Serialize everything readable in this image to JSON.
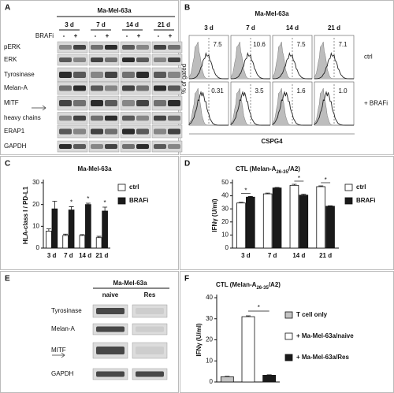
{
  "panels": [
    "A",
    "B",
    "C",
    "D",
    "E",
    "F"
  ],
  "blot_a": {
    "title": "Ma-Mel-63a",
    "treatment": "BRAFi",
    "times": [
      "3 d",
      "7 d",
      "14 d",
      "21 d"
    ],
    "conditions": [
      "-",
      "+"
    ],
    "rows": [
      "pERK",
      "ERK",
      "Tyrosinase",
      "Melan-A",
      "MITF",
      "heavy chains",
      "ERAP1",
      "GAPDH"
    ]
  },
  "flow_b": {
    "title": "Ma-Mel-63a",
    "times": [
      "3 d",
      "7 d",
      "14 d",
      "21 d"
    ],
    "ylabel": "% of gated",
    "xlabel": "CSPG4",
    "rows": [
      {
        "name": "ctrl",
        "values": [
          "7.5",
          "10.6",
          "7.5",
          "7.1"
        ]
      },
      {
        "name": "+ BRAFi",
        "values": [
          "0.31",
          "3.5",
          "1.6",
          "1.0"
        ]
      }
    ]
  },
  "blot_e": {
    "title": "Ma-Mel-63a",
    "columns": [
      "naive",
      "Res"
    ],
    "rows": [
      "Tyrosinase",
      "Melan-A",
      "MITF",
      "GAPDH"
    ]
  },
  "chart_data": [
    {
      "type": "bar",
      "title": [
        "Ma-Mel-63a"
      ],
      "ylabel": "HLA-class I / PD-L1",
      "categories": [
        "3 d",
        "7 d",
        "14 d",
        "21 d"
      ],
      "series": [
        {
          "name": "ctrl",
          "color": "#ffffff",
          "values": [
            7.8,
            5.8,
            5.8,
            4.8
          ],
          "errors": [
            1.0,
            0.6,
            0.4,
            0.6
          ]
        },
        {
          "name": "BRAFi",
          "color": "#1a1a1a",
          "values": [
            18,
            17.5,
            20,
            17
          ],
          "errors": [
            3.5,
            1.5,
            0.6,
            1.8
          ]
        }
      ],
      "significance": [
        null,
        "*",
        "*",
        "*"
      ],
      "significance_style": "star",
      "ylim": [
        0,
        30
      ],
      "yticks": [
        0,
        10,
        20,
        30
      ]
    },
    {
      "type": "bar",
      "title": [
        "CTL (Melan-A",
        "26-35",
        "/A2)"
      ],
      "ylabel": "IFNγ (U/ml)",
      "categories": [
        "3 d",
        "7 d",
        "14 d",
        "21 d"
      ],
      "series": [
        {
          "name": "ctrl",
          "color": "#ffffff",
          "values": [
            34.5,
            41.5,
            48,
            47
          ],
          "errors": [
            0.5,
            0.6,
            0.8,
            0.6
          ]
        },
        {
          "name": "BRAFi",
          "color": "#1a1a1a",
          "values": [
            39,
            46,
            40.5,
            32
          ],
          "errors": [
            0.5,
            0.4,
            0.7,
            0.4
          ]
        }
      ],
      "significance": [
        "*",
        null,
        "*",
        "*"
      ],
      "significance_style": "bracket",
      "ylim": [
        0,
        50
      ],
      "yticks": [
        0,
        10,
        20,
        30,
        40,
        50
      ]
    },
    {
      "type": "bar",
      "title": [
        "CTL (Melan-A",
        "26-35",
        "/A2)"
      ],
      "ylabel": "IFNγ (U/ml)",
      "series": [
        {
          "name": "T cell only",
          "color": "#c4c4c4",
          "values": [
            2.5
          ],
          "errors": [
            0.2
          ]
        },
        {
          "name": "+ Ma-Mel-63a/naive",
          "color": "#ffffff",
          "values": [
            31
          ],
          "errors": [
            0.4
          ]
        },
        {
          "name": "+ Ma-Mel-63a/Res",
          "color": "#1a1a1a",
          "values": [
            3.2
          ],
          "errors": [
            0.2
          ]
        }
      ],
      "significance": "*",
      "ylim": [
        0,
        40
      ],
      "yticks": [
        0,
        10,
        20,
        30,
        40
      ]
    }
  ]
}
